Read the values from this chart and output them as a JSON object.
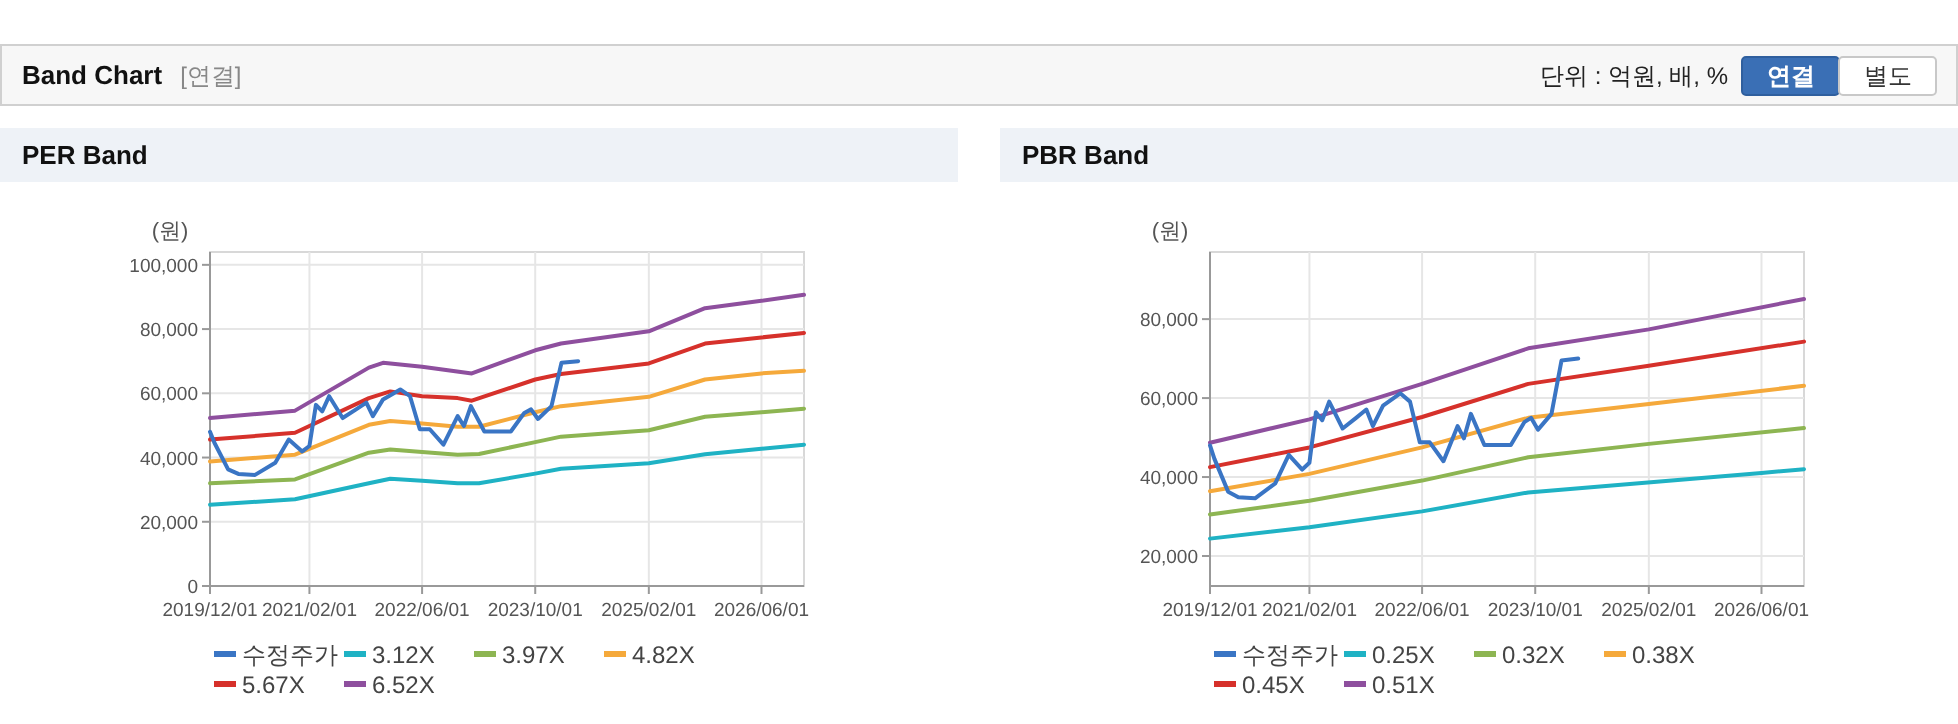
{
  "chart_data": [
    {
      "type": "other",
      "title": "Band Chart",
      "subtitle": "[연결]",
      "annotations": [
        "단위 : 억원, 배, %",
        "연결",
        "별도"
      ]
    },
    {
      "type": "line",
      "title": "PER Band",
      "ylabel": "(원)",
      "xlim": [
        "2019-12-01",
        "2026-12-01"
      ],
      "xticks": [
        {
          "value": "2019-12-01",
          "label": "2019/12/01"
        },
        {
          "value": "2021-02-01",
          "label": "2021/02/01"
        },
        {
          "value": "2022-06-01",
          "label": "2022/06/01"
        },
        {
          "value": "2023-10-01",
          "label": "2023/10/01"
        },
        {
          "value": "2025-02-01",
          "label": "2025/02/01"
        },
        {
          "value": "2026-06-01",
          "label": "2026/06/01"
        }
      ],
      "ylim": [
        0,
        104000
      ],
      "yticks": [
        0,
        {
          "value": 20000,
          "label": "20,000"
        },
        {
          "value": 40000,
          "label": "40,000"
        },
        {
          "value": 60000,
          "label": "60,000"
        },
        {
          "value": 80000,
          "label": "80,000"
        },
        {
          "value": 100000,
          "label": "100,000"
        }
      ],
      "grid": true,
      "legend": "bottom",
      "line_style": "solid",
      "marker": "none",
      "series": [
        {
          "name": "수정주가",
          "color": "#3a75c4",
          "x": [
            "2019-12-01",
            "2019-12-20",
            "2020-02-17",
            "2020-04-01",
            "2020-06-12",
            "2020-09-07",
            "2020-11-04",
            "2021-01-01",
            "2021-02-01",
            "2021-03-01",
            "2021-03-28",
            "2021-04-27",
            "2021-06-24",
            "2021-08-21",
            "2021-10-04",
            "2021-11-01",
            "2021-12-15",
            "2022-02-27",
            "2022-04-10",
            "2022-05-22",
            "2022-07-04",
            "2022-09-01",
            "2022-11-01",
            "2022-11-28",
            "2022-12-28",
            "2023-02-24",
            "2023-04-21",
            "2023-06-18",
            "2023-08-15",
            "2023-09-13",
            "2023-10-13",
            "2023-12-10",
            "2024-01-22",
            "2024-04-03"
          ],
          "values": [
            48000,
            44600,
            36300,
            34900,
            34600,
            38400,
            45600,
            41900,
            43600,
            56400,
            54400,
            59100,
            52300,
            55000,
            57100,
            52900,
            58100,
            61200,
            59100,
            48800,
            48800,
            44000,
            52900,
            49800,
            56000,
            48100,
            48100,
            48100,
            53900,
            55000,
            52000,
            56000,
            69500,
            70000
          ]
        },
        {
          "name": "3.12X",
          "color": "#1fb2c4",
          "x": [
            "2019-12-01",
            "2020-12-01",
            "2021-10-15",
            "2022-01-15",
            "2022-06-01",
            "2022-11-01",
            "2023-02-01",
            "2023-10-01",
            "2024-01-20",
            "2025-02-01",
            "2025-10-01",
            "2026-06-01",
            "2026-12-01"
          ],
          "values": [
            25300,
            27000,
            32000,
            33400,
            32800,
            32000,
            32000,
            35000,
            36500,
            38200,
            41000,
            42700,
            44000
          ]
        },
        {
          "name": "3.97X",
          "color": "#8db552",
          "x": [
            "2019-12-01",
            "2020-12-01",
            "2021-10-15",
            "2022-01-15",
            "2022-06-01",
            "2022-11-01",
            "2023-02-01",
            "2023-10-01",
            "2024-01-20",
            "2025-02-01",
            "2025-10-01",
            "2026-06-01",
            "2026-12-01"
          ],
          "values": [
            32000,
            33200,
            41500,
            42500,
            41700,
            40900,
            41100,
            44800,
            46500,
            48500,
            52700,
            54100,
            55200
          ]
        },
        {
          "name": "4.82X",
          "color": "#f5a93b",
          "x": [
            "2019-12-01",
            "2020-12-01",
            "2021-10-15",
            "2022-01-15",
            "2022-06-01",
            "2022-11-01",
            "2023-02-01",
            "2023-10-01",
            "2024-01-20",
            "2025-02-01",
            "2025-10-01",
            "2026-06-01",
            "2026-12-01"
          ],
          "values": [
            38800,
            40900,
            50200,
            51400,
            50600,
            49600,
            49600,
            54100,
            56000,
            58900,
            64300,
            66200,
            67000
          ]
        },
        {
          "name": "5.67X",
          "color": "#d6312b",
          "x": [
            "2019-12-01",
            "2020-12-01",
            "2021-10-15",
            "2022-01-15",
            "2022-06-01",
            "2022-11-01",
            "2023-01-01",
            "2023-10-01",
            "2024-01-20",
            "2025-02-01",
            "2025-10-01",
            "2026-06-01",
            "2026-12-01"
          ],
          "values": [
            45600,
            47700,
            58500,
            60600,
            59100,
            58500,
            57700,
            64300,
            66000,
            69300,
            75500,
            77400,
            78800
          ]
        },
        {
          "name": "6.52X",
          "color": "#8e4f9e",
          "x": [
            "2019-12-01",
            "2020-12-01",
            "2021-10-15",
            "2021-12-15",
            "2022-06-01",
            "2023-01-01",
            "2023-10-01",
            "2024-01-20",
            "2025-02-01",
            "2025-10-01",
            "2026-06-01",
            "2026-12-01"
          ],
          "values": [
            52300,
            54600,
            68000,
            69500,
            68300,
            66200,
            73400,
            75500,
            79300,
            86500,
            88800,
            90700
          ]
        }
      ]
    },
    {
      "type": "line",
      "title": "PBR Band",
      "ylabel": "(원)",
      "xlim": [
        "2019-12-01",
        "2026-12-01"
      ],
      "xticks": [
        {
          "value": "2019-12-01",
          "label": "2019/12/01"
        },
        {
          "value": "2021-02-01",
          "label": "2021/02/01"
        },
        {
          "value": "2022-06-01",
          "label": "2022/06/01"
        },
        {
          "value": "2023-10-01",
          "label": "2023/10/01"
        },
        {
          "value": "2025-02-01",
          "label": "2025/02/01"
        },
        {
          "value": "2026-06-01",
          "label": "2026/06/01"
        }
      ],
      "ylim": [
        12400,
        97000
      ],
      "yticks": [
        {
          "value": 20000,
          "label": "20,000"
        },
        {
          "value": 40000,
          "label": "40,000"
        },
        {
          "value": 60000,
          "label": "60,000"
        },
        {
          "value": 80000,
          "label": "80,000"
        }
      ],
      "grid": true,
      "legend": "bottom",
      "line_style": "solid",
      "marker": "none",
      "series": [
        {
          "name": "수정주가",
          "color": "#3a75c4",
          "x": [
            "2019-12-01",
            "2019-12-20",
            "2020-02-17",
            "2020-04-01",
            "2020-06-12",
            "2020-09-07",
            "2020-11-04",
            "2021-01-01",
            "2021-02-01",
            "2021-03-01",
            "2021-03-28",
            "2021-04-27",
            "2021-06-24",
            "2021-08-21",
            "2021-10-04",
            "2021-11-01",
            "2021-12-15",
            "2022-02-27",
            "2022-04-10",
            "2022-05-22",
            "2022-07-04",
            "2022-09-01",
            "2022-11-01",
            "2022-11-28",
            "2022-12-28",
            "2023-02-24",
            "2023-04-21",
            "2023-06-18",
            "2023-08-15",
            "2023-09-13",
            "2023-10-13",
            "2023-12-10",
            "2024-01-22",
            "2024-04-03"
          ],
          "values": [
            48000,
            44600,
            36300,
            34900,
            34600,
            38400,
            45600,
            41900,
            43600,
            56400,
            54400,
            59100,
            52300,
            55000,
            57100,
            52900,
            58100,
            61200,
            59100,
            48800,
            48800,
            44000,
            52900,
            49800,
            56000,
            48100,
            48100,
            48100,
            53900,
            55000,
            52000,
            56000,
            69500,
            70000
          ]
        },
        {
          "name": "0.25X",
          "color": "#1fb2c4",
          "x": [
            "2019-12-01",
            "2021-02-01",
            "2022-06-01",
            "2023-09-01",
            "2026-06-01",
            "2026-12-01"
          ],
          "values": [
            24400,
            27300,
            31300,
            36100,
            41000,
            42000
          ]
        },
        {
          "name": "0.32X",
          "color": "#8db552",
          "x": [
            "2019-12-01",
            "2021-02-01",
            "2022-06-01",
            "2023-09-01",
            "2025-02-01",
            "2026-12-01"
          ],
          "values": [
            30500,
            34000,
            39100,
            45000,
            48400,
            52400
          ]
        },
        {
          "name": "0.38X",
          "color": "#f5a93b",
          "x": [
            "2019-12-01",
            "2021-02-01",
            "2022-06-01",
            "2023-09-01",
            "2025-02-01",
            "2026-12-01"
          ],
          "values": [
            36400,
            40800,
            47500,
            55000,
            58500,
            63100
          ]
        },
        {
          "name": "0.45X",
          "color": "#d6312b",
          "x": [
            "2019-12-01",
            "2021-02-01",
            "2022-06-01",
            "2023-09-01",
            "2025-02-01",
            "2026-12-01"
          ],
          "values": [
            42500,
            47500,
            55200,
            63600,
            68200,
            74300
          ]
        },
        {
          "name": "0.51X",
          "color": "#8e4f9e",
          "x": [
            "2019-12-01",
            "2021-02-01",
            "2022-06-01",
            "2023-09-01",
            "2025-02-01",
            "2026-12-01"
          ],
          "values": [
            48700,
            54600,
            63600,
            72600,
            77400,
            85100
          ]
        }
      ]
    }
  ]
}
